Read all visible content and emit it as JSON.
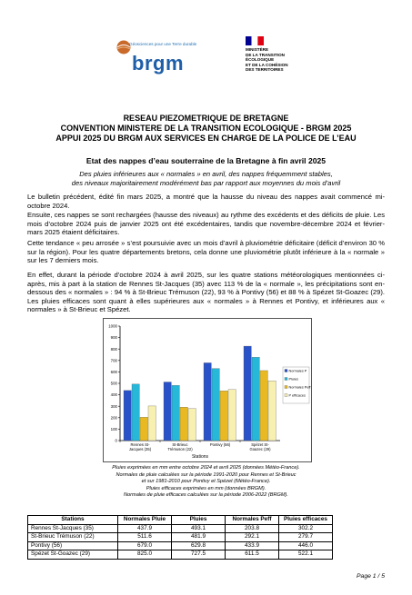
{
  "header": {
    "brgm_tagline": "Géosciences pour une Terre durable",
    "brgm_name": "brgm",
    "ministry_lines": [
      "MINISTÈRE",
      "DE LA TRANSITION",
      "ÉCOLOGIQUE",
      "ET DE LA COHÉSION",
      "DES TERRITOIRES"
    ]
  },
  "title_lines": [
    "RESEAU PIEZOMETRIQUE DE BRETAGNE",
    "CONVENTION MINISTERE DE LA TRANSITION ECOLOGIQUE - BRGM 2025",
    "APPUI 2025 DU BRGM AUX SERVICES EN CHARGE DE LA POLICE DE L’EAU"
  ],
  "subtitle": "Etat des nappes d’eau souterraine de la Bretagne à fin avril 2025",
  "intro_lines": [
    "Des pluies inférieures aux « normales » en avril, des nappes fréquemment stables,",
    "des niveaux majoritairement modérément bas par rapport aux moyennes du mois d’avril"
  ],
  "paragraphs": [
    "Le bulletin précédent, édité fin mars 2025, a montré que la hausse du niveau des nappes avait commencé mi-octobre 2024.",
    "Ensuite, ces nappes se sont rechargées (hausse des niveaux) au rythme des excédents et des déficits de pluie. Les mois d’octobre 2024 puis de janvier 2025 ont été excédentaires, tandis que novembre-décembre 2024 et février-mars 2025 étaient déficitaires.",
    "Cette tendance « peu arrosée » s’est poursuivie avec un mois d’avril à pluviométrie déficitaire (déficit d’environ 30 % sur la région). Pour les quatre départements bretons, cela donne une pluviométrie plutôt inférieure à la « normale » sur les 7 derniers mois.",
    "En effet, durant la période d’octobre 2024 à avril 2025, sur les quatre stations météorologiques mentionnées ci-après, mis à part à la station de Rennes St-Jacques (35) avec 113 % de la « normale », les précipitations sont en-dessous des « normales » : 94 % à St-Brieuc Trémuson (22), 93 % à Pontivy (56) et 88 % à Spézet St-Goazec (29). Les pluies efficaces sont quant à elles supérieures aux « normales » à Rennes et Pontivy, et inférieures aux « normales » à St-Brieuc et Spézet."
  ],
  "chart_data": {
    "type": "bar",
    "categories": [
      [
        "Rennes St-",
        "Jacques (35)"
      ],
      [
        "St-Brieuc",
        "Trémuson (22)"
      ],
      [
        "Pontivy (56)"
      ],
      [
        "Spézet St-",
        "Goazec (29)"
      ]
    ],
    "series": [
      {
        "name": "Normales P",
        "values": [
          437.9,
          511.6,
          679.0,
          825.0
        ],
        "color": "#2a52c8"
      },
      {
        "name": "Pluies",
        "values": [
          493.1,
          481.9,
          629.8,
          727.5
        ],
        "color": "#26b7d9"
      },
      {
        "name": "Normales Peff",
        "values": [
          203.8,
          292.1,
          433.9,
          611.5
        ],
        "color": "#e8b923"
      },
      {
        "name": "P efficaces",
        "values": [
          302.2,
          279.7,
          446.0,
          522.1
        ],
        "color": "#f7f0b0"
      }
    ],
    "ylim": [
      0,
      1000
    ],
    "yticks": [
      "0",
      "100",
      "200",
      "300",
      "400",
      "500",
      "600",
      "700",
      "800",
      "900",
      "1000"
    ],
    "xlabel": "Stations",
    "legend_position": "right",
    "grid": false
  },
  "captions": [
    "Pluies exprimées en mm entre octobre 2024 et avril 2025 (données Météo-France).",
    "Normales de pluie calculées sur la période 1991-2020 pour Rennes et St-Brieuc",
    "et sur 1981-2010 pour Pontivy et Spézet (Météo-France).",
    "Pluies efficaces exprimées en mm (données BRGM).",
    "Normales de pluie efficaces calculées sur la période 2006-2022 (BRGM)."
  ],
  "table": {
    "headers": [
      "Stations",
      "Normales Pluie",
      "Pluies",
      "Normales Peff",
      "Pluies efficaces"
    ],
    "rows": [
      [
        "Rennes St-Jacques (35)",
        "437.9",
        "493.1",
        "203.8",
        "302.2"
      ],
      [
        "St-Brieuc Trémuson (22)",
        "511.6",
        "481.9",
        "292.1",
        "279.7"
      ],
      [
        "Pontivy (56)",
        "679.0",
        "629.8",
        "433.9",
        "446.0"
      ],
      [
        "Spézet St-Goazec (29)",
        "825.0",
        "727.5",
        "611.5",
        "522.1"
      ]
    ]
  },
  "page_label": "Page 1 / 5"
}
